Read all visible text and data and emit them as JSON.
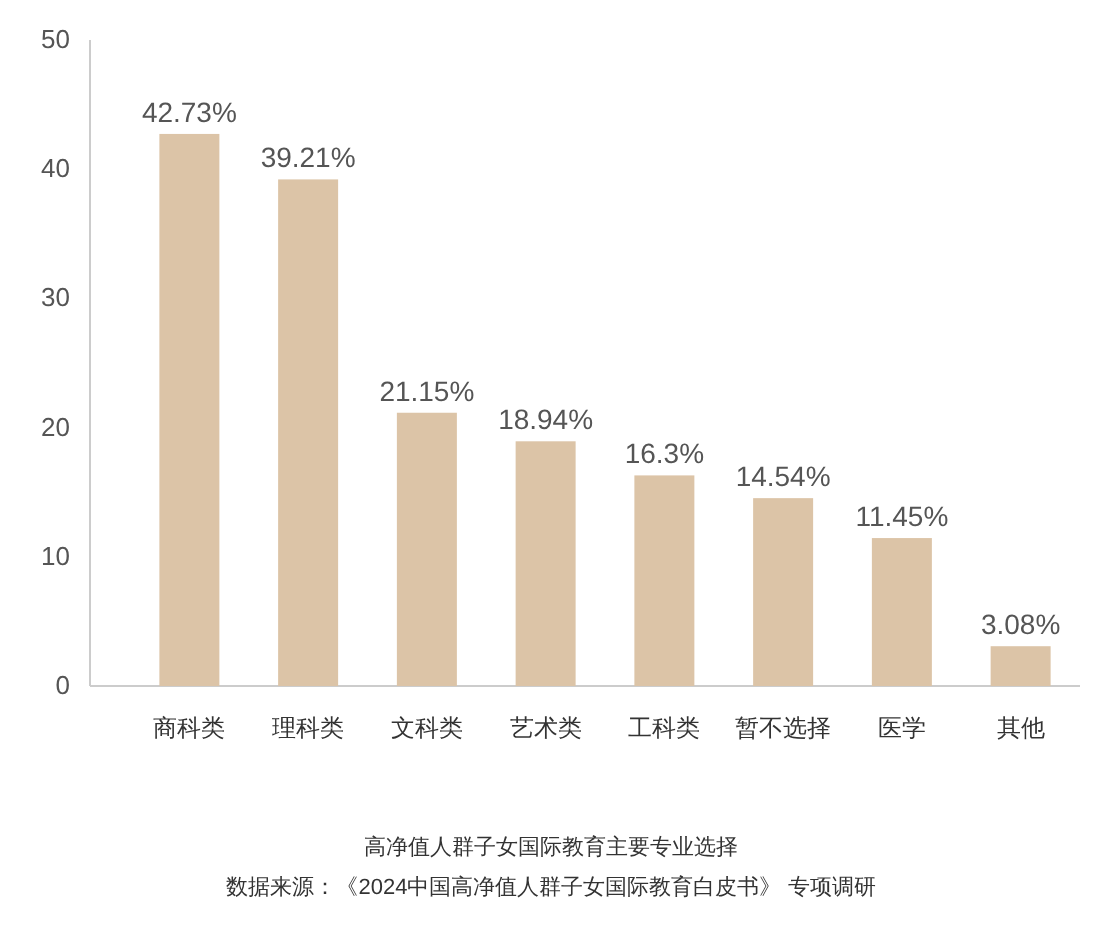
{
  "chart_data": {
    "type": "bar",
    "title": "高净值人群子女国际教育主要专业选择",
    "annotations": [
      "数据来源：《2024中国高净值人群子女国际教育白皮书》 专项调研"
    ],
    "categories": [
      "商科类",
      "理科类",
      "文科类",
      "艺术类",
      "工科类",
      "暂不选择",
      "医学",
      "其他"
    ],
    "values": [
      42.73,
      39.21,
      21.15,
      18.94,
      16.3,
      14.54,
      11.45,
      3.08
    ],
    "value_labels": [
      "42.73%",
      "39.21%",
      "21.15%",
      "18.94%",
      "16.3%",
      "14.54%",
      "11.45%",
      "3.08%"
    ],
    "color": "#dcc4a7",
    "ylim": [
      0,
      50
    ],
    "yticks": [
      0,
      10,
      20,
      30,
      40,
      50
    ]
  }
}
